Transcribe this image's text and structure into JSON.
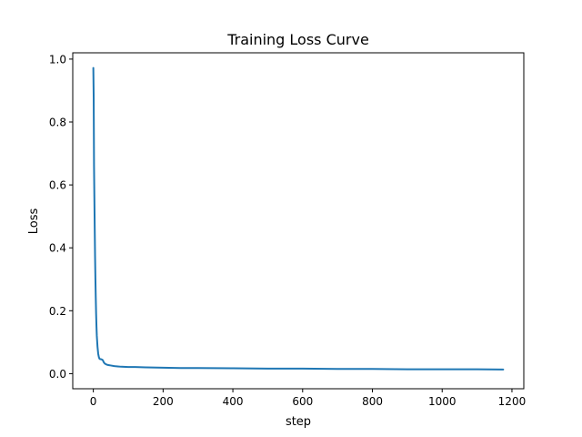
{
  "chart_data": {
    "type": "line",
    "title": "Training Loss Curve",
    "xlabel": "step",
    "ylabel": "Loss",
    "xlim": [
      -59,
      1234
    ],
    "ylim": [
      -0.048,
      1.02
    ],
    "xticks": [
      0,
      200,
      400,
      600,
      800,
      1000,
      1200
    ],
    "yticks": [
      0.0,
      0.2,
      0.4,
      0.6,
      0.8,
      1.0
    ],
    "ytick_labels": [
      "0.0",
      "0.2",
      "0.4",
      "0.6",
      "0.8",
      "1.0"
    ],
    "grid": false,
    "series": [
      {
        "color": "#1f77b4",
        "x": [
          0,
          1,
          2,
          3,
          4,
          5,
          6,
          7,
          8,
          9,
          10,
          12,
          14,
          16,
          18,
          20,
          22,
          24,
          26,
          28,
          30,
          33,
          36,
          40,
          45,
          50,
          60,
          70,
          80,
          100,
          120,
          150,
          200,
          250,
          300,
          400,
          500,
          600,
          700,
          800,
          900,
          1000,
          1100,
          1175
        ],
        "y": [
          0.972,
          0.88,
          0.66,
          0.56,
          0.46,
          0.37,
          0.3,
          0.24,
          0.19,
          0.15,
          0.12,
          0.085,
          0.063,
          0.052,
          0.047,
          0.046,
          0.046,
          0.045,
          0.044,
          0.041,
          0.036,
          0.032,
          0.03,
          0.028,
          0.027,
          0.026,
          0.024,
          0.023,
          0.022,
          0.021,
          0.021,
          0.02,
          0.019,
          0.018,
          0.018,
          0.017,
          0.016,
          0.016,
          0.015,
          0.015,
          0.014,
          0.014,
          0.014,
          0.013
        ]
      }
    ]
  }
}
